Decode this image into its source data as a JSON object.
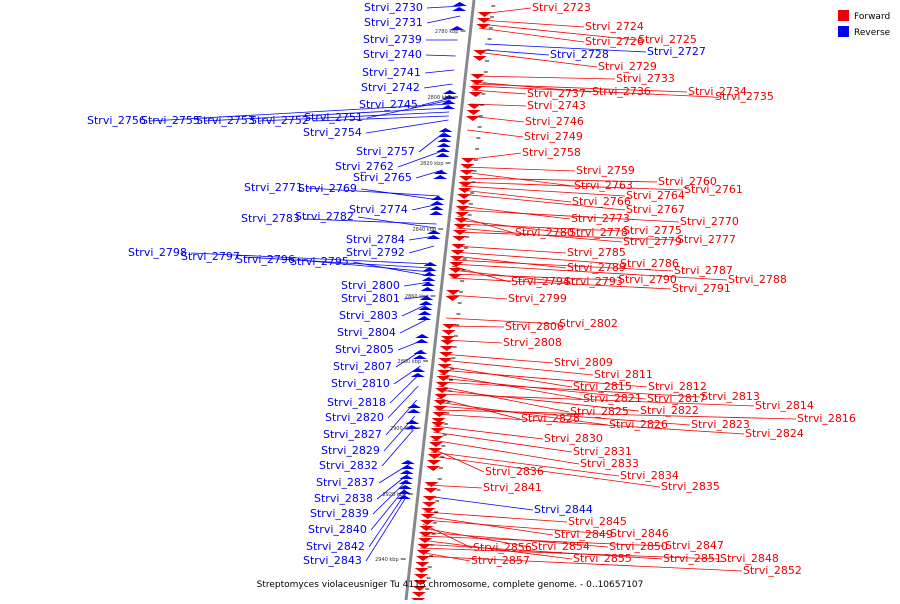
{
  "caption": "Streptomyces violaceusniger Tu 4113 chromosome, complete genome. - 0..10657107",
  "legend": [
    {
      "label": "Forward",
      "color": "#ee0000"
    },
    {
      "label": "Reverse",
      "color": "#0000ee"
    }
  ],
  "colors": {
    "forward": "#ee0000",
    "reverse": "#0000ee",
    "axis": "#888888"
  },
  "ticks": [
    "2780 kbp",
    "2800 kbp",
    "2820 kbp",
    "2840 kbp",
    "2860 kbp",
    "2880 kbp",
    "2900 kbp",
    "2920 kbp",
    "2940 kbp"
  ],
  "forward_labels": [
    "Strvi_2723",
    "Strvi_2724",
    "Strvi_2725",
    "Strvi_2726",
    "Strvi_2729",
    "Strvi_2733",
    "Strvi_2736",
    "Strvi_2734",
    "Strvi_2737",
    "Strvi_2735",
    "Strvi_2743",
    "Strvi_2746",
    "Strvi_2749",
    "Strvi_2758",
    "Strvi_2759",
    "Strvi_2760",
    "Strvi_2763",
    "Strvi_2761",
    "Strvi_2764",
    "Strvi_2766",
    "Strvi_2767",
    "Strvi_2773",
    "Strvi_2770",
    "Strvi_2780",
    "Strvi_2778",
    "Strvi_2775",
    "Strvi_2779",
    "Strvi_2777",
    "Strvi_2785",
    "Strvi_2786",
    "Strvi_2789",
    "Strvi_2787",
    "Strvi_2794",
    "Strvi_2793",
    "Strvi_2790",
    "Strvi_2788",
    "Strvi_2791",
    "Strvi_2799",
    "Strvi_2802",
    "Strvi_2806",
    "Strvi_2808",
    "Strvi_2809",
    "Strvi_2811",
    "Strvi_2815",
    "Strvi_2812",
    "Strvi_2821",
    "Strvi_2817",
    "Strvi_2813",
    "Strvi_2825",
    "Strvi_2822",
    "Strvi_2814",
    "Strvi_2828",
    "Strvi_2826",
    "Strvi_2823",
    "Strvi_2816",
    "Strvi_2824",
    "Strvi_2830",
    "Strvi_2831",
    "Strvi_2833",
    "Strvi_2836",
    "Strvi_2834",
    "Strvi_2835",
    "Strvi_2841",
    "Strvi_2845",
    "Strvi_2849",
    "Strvi_2846",
    "Strvi_2856",
    "Strvi_2854",
    "Strvi_2850",
    "Strvi_2847",
    "Strvi_2855",
    "Strvi_2851",
    "Strvi_2848",
    "Strvi_2857",
    "Strvi_2852"
  ],
  "reverse_labels": [
    "Strvi_2730",
    "Strvi_2731",
    "Strvi_2739",
    "Strvi_2740",
    "Strvi_2741",
    "Strvi_2742",
    "Strvi_2745",
    "Strvi_2751",
    "Strvi_2756",
    "Strvi_2755",
    "Strvi_2753",
    "Strvi_2752",
    "Strvi_2754",
    "Strvi_2757",
    "Strvi_2762",
    "Strvi_2765",
    "Strvi_2771",
    "Strvi_2769",
    "Strvi_2774",
    "Strvi_2783",
    "Strvi_2782",
    "Strvi_2784",
    "Strvi_2792",
    "Strvi_2798",
    "Strvi_2797",
    "Strvi_2796",
    "Strvi_2795",
    "Strvi_2800",
    "Strvi_2801",
    "Strvi_2803",
    "Strvi_2804",
    "Strvi_2805",
    "Strvi_2807",
    "Strvi_2810",
    "Strvi_2818",
    "Strvi_2820",
    "Strvi_2827",
    "Strvi_2829",
    "Strvi_2832",
    "Strvi_2837",
    "Strvi_2838",
    "Strvi_2839",
    "Strvi_2840",
    "Strvi_2842",
    "Strvi_2843",
    "Strvi_2728",
    "Strvi_2727",
    "Strvi_2844"
  ]
}
